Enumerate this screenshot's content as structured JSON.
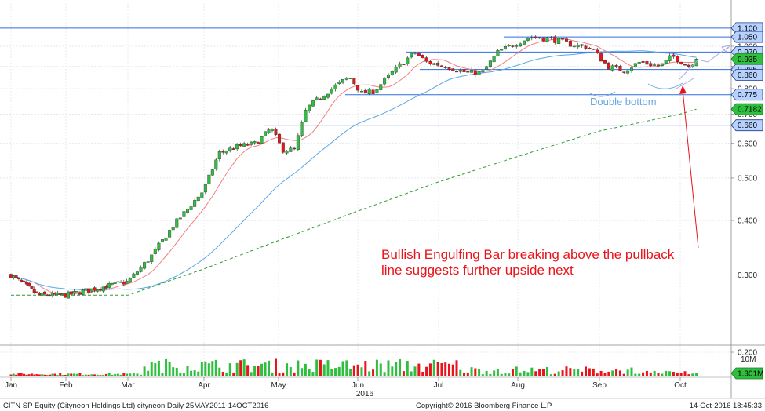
{
  "chart_data": {
    "type": "candlestick",
    "y_scale": "log",
    "ylim": [
      0.18,
      1.1
    ],
    "y_ticks": [
      {
        "label": "0.200",
        "value": 0.2
      },
      {
        "label": "0.300",
        "value": 0.3
      },
      {
        "label": "0.400",
        "value": 0.4
      },
      {
        "label": "0.500",
        "value": 0.5
      },
      {
        "label": "0.600",
        "value": 0.6
      },
      {
        "label": "0.700",
        "value": 0.7
      },
      {
        "label": "0.800",
        "value": 0.8
      },
      {
        "label": "0.900",
        "value": 0.9
      },
      {
        "label": "1.000",
        "value": 1.0
      }
    ],
    "x_ticks": [
      "Jan",
      "Feb",
      "Mar",
      "Apr",
      "May",
      "Jun",
      "Jul",
      "Aug",
      "Sep",
      "Oct"
    ],
    "year_label": "2016",
    "horizontal_levels": [
      {
        "label": "1.100",
        "value": 1.1
      },
      {
        "label": "1.050",
        "value": 1.05
      },
      {
        "label": "0.970",
        "value": 0.97
      },
      {
        "label": "0.885",
        "value": 0.885
      },
      {
        "label": "0.860",
        "value": 0.86
      },
      {
        "label": "0.775",
        "value": 0.775
      },
      {
        "label": "0.660",
        "value": 0.66
      }
    ],
    "price_tags": [
      {
        "label": "0.935",
        "value": 0.935,
        "color": "#2fbf3f"
      },
      {
        "label": "0.7182",
        "value": 0.7182,
        "color": "#2fbf3f"
      }
    ],
    "anchors": [
      {
        "m": 0.0,
        "v": 0.3
      },
      {
        "m": 0.5,
        "v": 0.27
      },
      {
        "m": 1.0,
        "v": 0.27
      },
      {
        "m": 1.5,
        "v": 0.28
      },
      {
        "m": 2.0,
        "v": 0.29
      },
      {
        "m": 2.3,
        "v": 0.33
      },
      {
        "m": 2.6,
        "v": 0.39
      },
      {
        "m": 3.0,
        "v": 0.47
      },
      {
        "m": 3.2,
        "v": 0.57
      },
      {
        "m": 3.45,
        "v": 0.59
      },
      {
        "m": 3.7,
        "v": 0.6
      },
      {
        "m": 3.9,
        "v": 0.65
      },
      {
        "m": 4.05,
        "v": 0.58
      },
      {
        "m": 4.2,
        "v": 0.58
      },
      {
        "m": 4.35,
        "v": 0.72
      },
      {
        "m": 4.55,
        "v": 0.77
      },
      {
        "m": 4.75,
        "v": 0.82
      },
      {
        "m": 4.9,
        "v": 0.85
      },
      {
        "m": 5.05,
        "v": 0.78
      },
      {
        "m": 5.2,
        "v": 0.79
      },
      {
        "m": 5.45,
        "v": 0.88
      },
      {
        "m": 5.7,
        "v": 0.97
      },
      {
        "m": 5.85,
        "v": 0.92
      },
      {
        "m": 6.1,
        "v": 0.9
      },
      {
        "m": 6.35,
        "v": 0.87
      },
      {
        "m": 6.55,
        "v": 0.87
      },
      {
        "m": 6.75,
        "v": 0.97
      },
      {
        "m": 6.95,
        "v": 1.01
      },
      {
        "m": 7.15,
        "v": 1.05
      },
      {
        "m": 7.4,
        "v": 1.04
      },
      {
        "m": 7.65,
        "v": 1.01
      },
      {
        "m": 7.9,
        "v": 0.99
      },
      {
        "m": 8.1,
        "v": 0.9
      },
      {
        "m": 8.3,
        "v": 0.88
      },
      {
        "m": 8.5,
        "v": 0.92
      },
      {
        "m": 8.75,
        "v": 0.9
      },
      {
        "m": 8.9,
        "v": 0.95
      },
      {
        "m": 9.1,
        "v": 0.9
      },
      {
        "m": 9.2,
        "v": 0.935
      }
    ],
    "ma_slow": [
      {
        "m": 0.0,
        "v": 0.27
      },
      {
        "m": 2.0,
        "v": 0.27
      },
      {
        "m": 3.0,
        "v": 0.31
      },
      {
        "m": 4.0,
        "v": 0.36
      },
      {
        "m": 5.0,
        "v": 0.42
      },
      {
        "m": 6.0,
        "v": 0.49
      },
      {
        "m": 7.0,
        "v": 0.56
      },
      {
        "m": 8.0,
        "v": 0.64
      },
      {
        "m": 9.0,
        "v": 0.7
      },
      {
        "m": 9.2,
        "v": 0.7182
      }
    ],
    "volume_axis": {
      "max_label": "10M",
      "last_label": "1.301M"
    }
  },
  "annotations": {
    "double_bottom": "Double bottom",
    "bullish_line1": "Bullish Engulfing Bar breaking above the pullback",
    "bullish_line2": "line suggests further upside next"
  },
  "footer": {
    "left": "CITN SP Equity (Cityneon Holdings Ltd) cityneon  Daily 25MAY2011-14OCT2016",
    "center": "Copyright© 2016 Bloomberg Finance L.P.",
    "right": "14-Oct-2016  18:45:33"
  },
  "colors": {
    "up": "#2fbf3f",
    "down": "#e8141b",
    "ma_fast": "#f08080",
    "ma_mid": "#5aa7e6",
    "ma_slow": "#2e9a2e",
    "level_line": "#2e6ee0",
    "tag_fill": "#b8d2ff",
    "tag_border": "#1d3d8a",
    "annot_red": "#e8141b",
    "annot_blue": "#6aa8e0"
  }
}
